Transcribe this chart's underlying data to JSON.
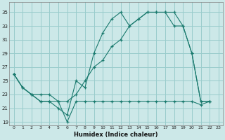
{
  "xlabel": "Humidex (Indice chaleur)",
  "bg_color": "#cce8e8",
  "grid_color": "#99cccc",
  "line_color": "#1a7a6e",
  "xlim": [
    -0.5,
    23.5
  ],
  "ylim": [
    18.5,
    36.5
  ],
  "xticks": [
    0,
    1,
    2,
    3,
    4,
    5,
    6,
    7,
    8,
    9,
    10,
    11,
    12,
    13,
    14,
    15,
    16,
    17,
    18,
    19,
    20,
    21,
    22,
    23
  ],
  "yticks": [
    19,
    21,
    23,
    25,
    27,
    29,
    31,
    33,
    35
  ],
  "line1_x": [
    0,
    1,
    2,
    3,
    4,
    5,
    6,
    7,
    8,
    9,
    10,
    11,
    12,
    13,
    14,
    15,
    16,
    17,
    18,
    19,
    20,
    21,
    22
  ],
  "line1_y": [
    26,
    24,
    23,
    22,
    22,
    21,
    20,
    25,
    24,
    29,
    32,
    34,
    35,
    33,
    34,
    35,
    35,
    35,
    35,
    33,
    29,
    22,
    22
  ],
  "line2_x": [
    0,
    1,
    2,
    3,
    4,
    5,
    6,
    7,
    8,
    9,
    10,
    11,
    12,
    13,
    14,
    15,
    16,
    17,
    18,
    19,
    20,
    21,
    22
  ],
  "line2_y": [
    26,
    24,
    23,
    23,
    23,
    22,
    22,
    23,
    25,
    27,
    28,
    30,
    31,
    33,
    34,
    35,
    35,
    35,
    33,
    33,
    29,
    22,
    22
  ],
  "line3_x": [
    0,
    1,
    2,
    3,
    4,
    5,
    6,
    7,
    8,
    9,
    10,
    11,
    12,
    13,
    14,
    15,
    16,
    17,
    18,
    19,
    20,
    21,
    22
  ],
  "line3_y": [
    26,
    24,
    23,
    22,
    22,
    22,
    19,
    22,
    22,
    22,
    22,
    22,
    22,
    22,
    22,
    22,
    22,
    22,
    22,
    22,
    22,
    21.5,
    22
  ]
}
